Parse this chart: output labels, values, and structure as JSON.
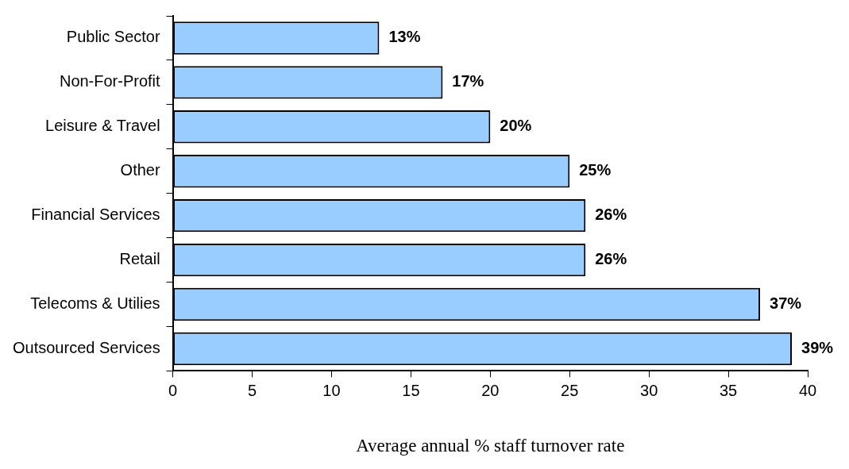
{
  "chart_data": {
    "type": "bar",
    "orientation": "horizontal",
    "xlabel": "Average annual % staff turnover rate",
    "categories": [
      "Public Sector",
      "Non-For-Profit",
      "Leisure & Travel",
      "Other",
      "Financial Services",
      "Retail",
      "Telecoms & Utilies",
      "Outsourced Services"
    ],
    "values": [
      13,
      17,
      20,
      25,
      26,
      26,
      37,
      39
    ],
    "value_labels": [
      "13%",
      "17%",
      "20%",
      "25%",
      "26%",
      "26%",
      "37%",
      "39%"
    ],
    "color": "#99ccff",
    "xlim": [
      0,
      40
    ],
    "xticks": [
      0,
      5,
      10,
      15,
      20,
      25,
      30,
      35,
      40
    ],
    "grid": false,
    "legend": false
  }
}
